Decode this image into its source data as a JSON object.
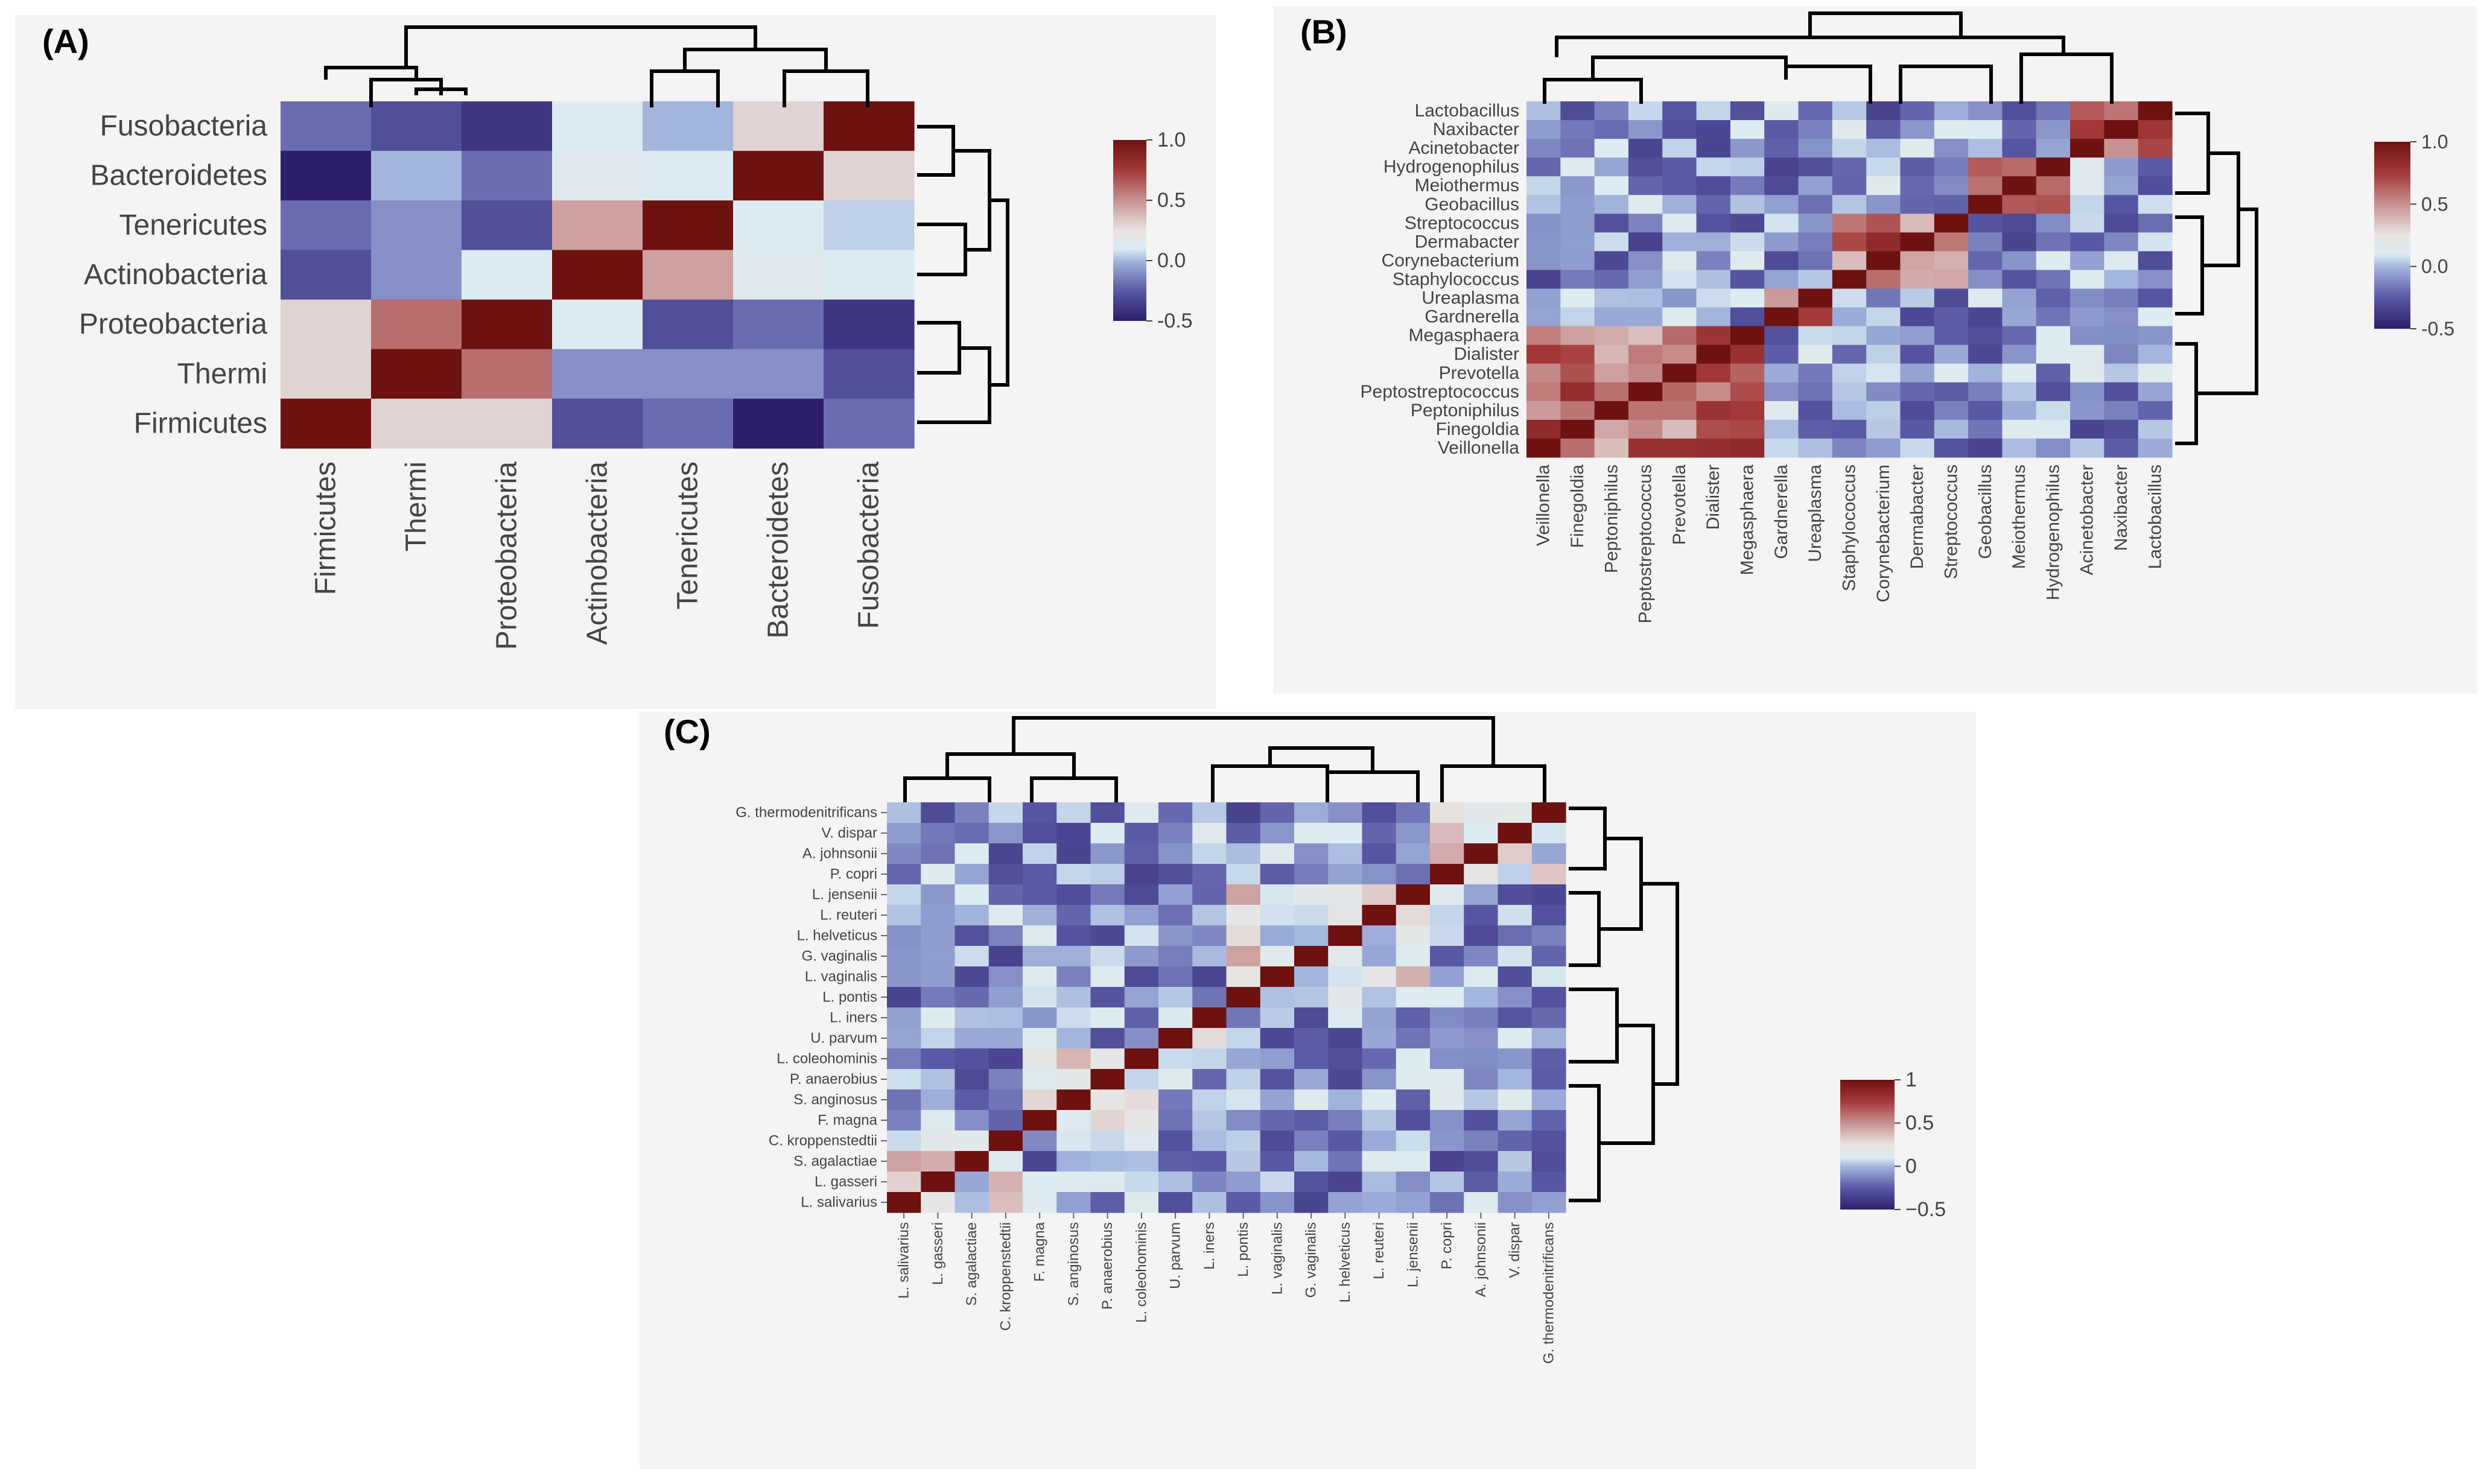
{
  "chart_data": [
    {
      "panel": "(A)",
      "type": "heatmap",
      "rows": [
        "Fusobacteria",
        "Bacteroidetes",
        "Tenericutes",
        "Actinobacteria",
        "Proteobacteria",
        "Thermi",
        "Firmicutes"
      ],
      "columns": [
        "Firmicutes",
        "Thermi",
        "Proteobacteria",
        "Actinobacteria",
        "Tenericutes",
        "Bacteroidetes",
        "Fusobacteria"
      ],
      "values": [
        [
          -0.2,
          -0.3,
          -0.4,
          0.1,
          0.0,
          0.3,
          1.0
        ],
        [
          -0.5,
          0.0,
          -0.2,
          0.15,
          0.1,
          1.0,
          0.3
        ],
        [
          -0.2,
          -0.1,
          -0.3,
          0.45,
          1.0,
          0.1,
          0.05
        ],
        [
          -0.3,
          -0.1,
          0.1,
          1.0,
          0.45,
          0.15,
          0.1
        ],
        [
          0.3,
          0.6,
          1.0,
          0.1,
          -0.3,
          -0.2,
          -0.4
        ],
        [
          0.3,
          1.0,
          0.6,
          -0.1,
          -0.1,
          -0.1,
          -0.3
        ],
        [
          1.0,
          0.3,
          0.3,
          -0.3,
          -0.2,
          -0.5,
          -0.2
        ]
      ],
      "colorbar": {
        "min": -0.5,
        "max": 1.0,
        "ticks": [
          "1.0",
          "0.5",
          "0.0",
          "-0.5"
        ]
      }
    },
    {
      "panel": "(B)",
      "type": "heatmap",
      "rows": [
        "Lactobacillus",
        "Naxibacter",
        "Acinetobacter",
        "Hydrogenophilus",
        "Meiothermus",
        "Geobacillus",
        "Streptococcus",
        "Dermabacter",
        "Corynebacterium",
        "Staphylococcus",
        "Ureaplasma",
        "Gardnerella",
        "Megasphaera",
        "Dialister",
        "Prevotella",
        "Peptostreptococcus",
        "Peptoniphilus",
        "Finegoldia",
        "Veillonella"
      ],
      "columns": [
        "Veillonella",
        "Finegoldia",
        "Peptoniphilus",
        "Peptostreptococcus",
        "Prevotella",
        "Dialister",
        "Megasphaera",
        "Gardnerella",
        "Ureaplasma",
        "Staphylococcus",
        "Corynebacterium",
        "Dermabacter",
        "Streptococcus",
        "Geobacillus",
        "Meiothermus",
        "Hydrogenophilus",
        "Acinetobacter",
        "Naxibacter",
        "Lactobacillus"
      ],
      "groups": [
        [
          0,
          6
        ],
        [
          7,
          8
        ],
        [
          9,
          12
        ],
        [
          13,
          15
        ],
        [
          16,
          18
        ]
      ],
      "within_group_correlation": 0.6,
      "between_group_correlation": -0.1,
      "colorbar": {
        "min": -0.5,
        "max": 1.0,
        "ticks": [
          "1.0",
          "0.5",
          "0.0",
          "-0.5"
        ]
      }
    },
    {
      "panel": "(C)",
      "type": "heatmap",
      "rows": [
        "G. thermodenitrificans",
        "V. dispar",
        "A. johnsonii",
        "P. copri",
        "L. jensenii",
        "L. reuteri",
        "L. helveticus",
        "G. vaginalis",
        "L. vaginalis",
        "L. pontis",
        "L. iners",
        "U. parvum",
        "L. coleohominis",
        "P. anaerobius",
        "S. anginosus",
        "F. magna",
        "C. kroppenstedtii",
        "S. agalactiae",
        "L. gasseri",
        "L. salivarius"
      ],
      "columns": [
        "L. salivarius",
        "L. gasseri",
        "S. agalactiae",
        "C. kroppenstedtii",
        "F. magna",
        "S. anginosus",
        "P. anaerobius",
        "L. coleohominis",
        "U. parvum",
        "L. iners",
        "L. pontis",
        "L. vaginalis",
        "G. vaginalis",
        "L. helveticus",
        "L. reuteri",
        "L. jensenii",
        "P. copri",
        "A. johnsonii",
        "V. dispar",
        "G. thermodenitrificans"
      ],
      "groups": [
        [
          0,
          3
        ],
        [
          4,
          7
        ],
        [
          8,
          9
        ],
        [
          10,
          15
        ],
        [
          16,
          19
        ]
      ],
      "within_group_correlation": 0.2,
      "between_group_correlation": -0.1,
      "colorbar": {
        "min": -0.5,
        "max": 1.0,
        "ticks": [
          "1",
          "0.5",
          "0",
          "−0.5"
        ]
      }
    }
  ]
}
